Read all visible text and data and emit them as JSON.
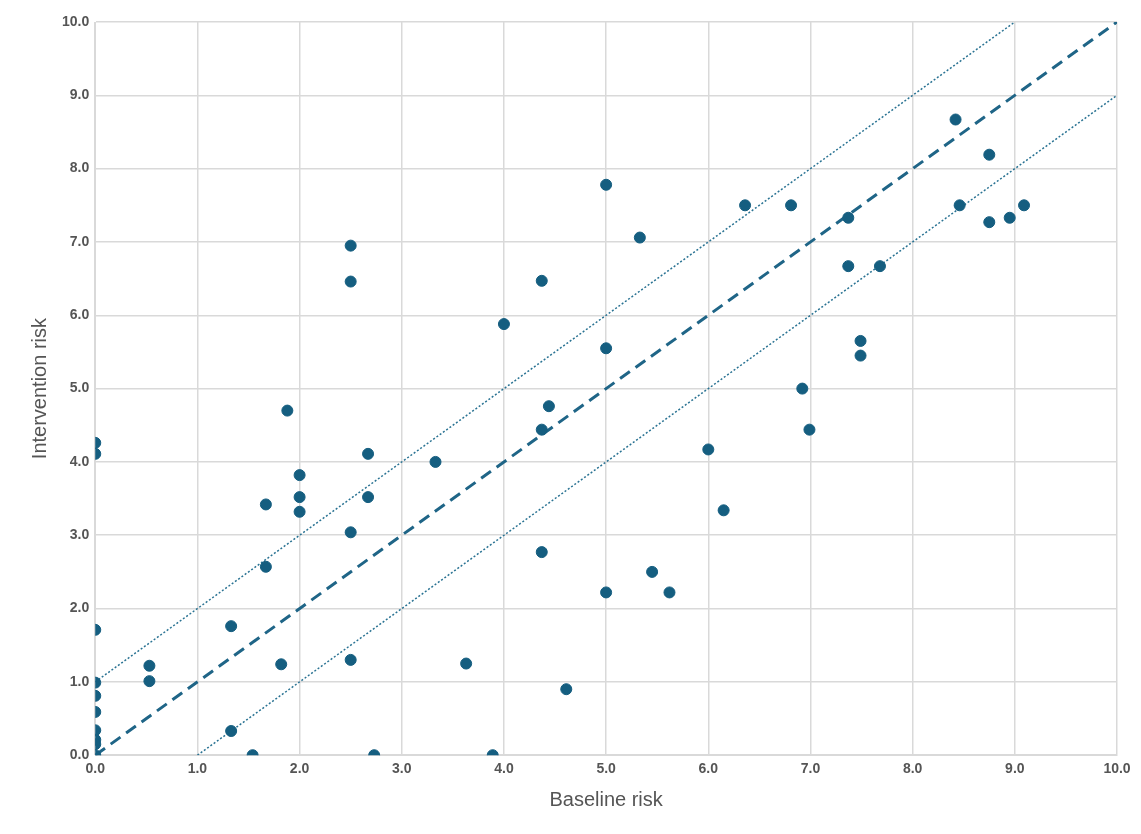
{
  "chart_data": {
    "type": "scatter",
    "xlabel": "Baseline risk",
    "ylabel": "Intervention risk",
    "xlim": [
      0,
      10
    ],
    "ylim": [
      0,
      10
    ],
    "xticks": [
      {
        "value": 0,
        "label": "0.0"
      },
      {
        "value": 1,
        "label": "1.0"
      },
      {
        "value": 2,
        "label": "2.0"
      },
      {
        "value": 3,
        "label": "3.0"
      },
      {
        "value": 4,
        "label": "4.0"
      },
      {
        "value": 5,
        "label": "5.0"
      },
      {
        "value": 6,
        "label": "6.0"
      },
      {
        "value": 7,
        "label": "7.0"
      },
      {
        "value": 8,
        "label": "8.0"
      },
      {
        "value": 9,
        "label": "9.0"
      },
      {
        "value": 10,
        "label": "10.0"
      }
    ],
    "yticks": [
      {
        "value": 0,
        "label": "0.0"
      },
      {
        "value": 1,
        "label": "1.0"
      },
      {
        "value": 2,
        "label": "2.0"
      },
      {
        "value": 3,
        "label": "3.0"
      },
      {
        "value": 4,
        "label": "4.0"
      },
      {
        "value": 5,
        "label": "5.0"
      },
      {
        "value": 6,
        "label": "6.0"
      },
      {
        "value": 7,
        "label": "7.0"
      },
      {
        "value": 8,
        "label": "8.0"
      },
      {
        "value": 9,
        "label": "9.0"
      },
      {
        "value": 10,
        "label": "10.0"
      }
    ],
    "grid": true,
    "legend": false,
    "marker": "circle",
    "series": [
      {
        "color": "#155e80",
        "x": [
          0,
          0,
          0,
          0,
          0,
          0,
          0,
          0,
          0,
          0,
          0.53,
          0.53,
          1.33,
          1.33,
          1.54,
          1.67,
          1.67,
          1.82,
          1.88,
          2.0,
          2.0,
          2.0,
          2.5,
          2.5,
          2.5,
          2.5,
          2.67,
          2.67,
          2.73,
          3.33,
          3.63,
          3.89,
          4.0,
          4.37,
          4.37,
          4.37,
          4.44,
          4.61,
          5.0,
          5.0,
          5.0,
          5.33,
          5.45,
          5.62,
          6.0,
          6.15,
          6.36,
          6.81,
          6.92,
          6.99,
          7.37,
          7.37,
          7.49,
          7.49,
          7.68,
          8.42,
          8.46,
          8.75,
          8.75,
          8.95,
          9.09
        ],
        "values": [
          4.26,
          4.11,
          1.71,
          0.99,
          0.81,
          0.59,
          0.34,
          0.21,
          0.15,
          0,
          1.22,
          1.01,
          1.76,
          0.33,
          0,
          3.42,
          2.57,
          1.24,
          4.7,
          3.82,
          3.52,
          3.32,
          6.95,
          6.46,
          3.04,
          1.3,
          4.11,
          3.52,
          0,
          4.0,
          1.25,
          0,
          5.88,
          6.47,
          4.44,
          2.77,
          4.76,
          0.9,
          7.78,
          5.55,
          2.22,
          7.06,
          2.5,
          2.22,
          4.17,
          3.34,
          7.5,
          7.5,
          5.0,
          4.44,
          7.33,
          6.67,
          5.65,
          5.45,
          6.67,
          8.67,
          7.5,
          8.19,
          7.27,
          7.33,
          7.5
        ]
      },
      {
        "type": "line",
        "color": "#1f6587",
        "line_style": "dashed",
        "marker": "none",
        "x": [
          0,
          10
        ],
        "values": [
          0,
          10
        ]
      },
      {
        "type": "line",
        "color": "#2a7393",
        "line_style": "dotted",
        "marker": "none",
        "x": [
          0,
          9
        ],
        "values": [
          1,
          10
        ]
      },
      {
        "type": "line",
        "color": "#2a7393",
        "line_style": "dotted",
        "marker": "none",
        "x": [
          1,
          10
        ],
        "values": [
          0,
          9
        ]
      }
    ]
  }
}
